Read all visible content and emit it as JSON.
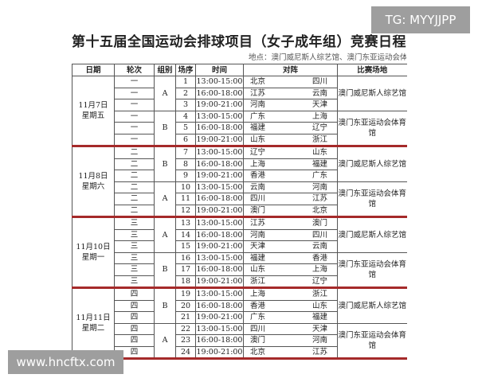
{
  "title": "第十五届全国运动会排球项目（女子成年组）竞赛日程",
  "subtitle": "地点：澳门威尼斯人综艺馆、澳门东亚运动会体育馆",
  "headers": [
    "日期",
    "轮次",
    "组别",
    "场序",
    "时间",
    "对阵",
    "比赛场地"
  ],
  "days": [
    {
      "date": "11月7日",
      "weekday": "星期五",
      "blocks": [
        {
          "group": "A",
          "venue": "澳门威尼斯人综艺馆",
          "matches": [
            {
              "round": "一",
              "no": "1",
              "time": "13:00-15:00",
              "home": "北京",
              "away": "四川"
            },
            {
              "round": "一",
              "no": "2",
              "time": "16:00-18:00",
              "home": "江苏",
              "away": "云南"
            },
            {
              "round": "一",
              "no": "3",
              "time": "19:00-21:00",
              "home": "河南",
              "away": "天津"
            }
          ]
        },
        {
          "group": "B",
          "venue": "澳门东亚运动会体育馆",
          "matches": [
            {
              "round": "一",
              "no": "4",
              "time": "13:00-15:00",
              "home": "广东",
              "away": "上海"
            },
            {
              "round": "一",
              "no": "5",
              "time": "16:00-18:00",
              "home": "福建",
              "away": "辽宁"
            },
            {
              "round": "一",
              "no": "6",
              "time": "19:00-21:00",
              "home": "山东",
              "away": "浙江"
            }
          ]
        }
      ]
    },
    {
      "date": "11月8日",
      "weekday": "星期六",
      "blocks": [
        {
          "group": "B",
          "venue": "澳门威尼斯人综艺馆",
          "matches": [
            {
              "round": "二",
              "no": "7",
              "time": "13:00-15:00",
              "home": "辽宁",
              "away": "山东"
            },
            {
              "round": "二",
              "no": "8",
              "time": "16:00-18:00",
              "home": "上海",
              "away": "福建"
            },
            {
              "round": "二",
              "no": "9",
              "time": "19:00-21:00",
              "home": "香港",
              "away": "广东"
            }
          ]
        },
        {
          "group": "A",
          "venue": "澳门东亚运动会体育馆",
          "matches": [
            {
              "round": "二",
              "no": "10",
              "time": "13:00-15:00",
              "home": "云南",
              "away": "河南"
            },
            {
              "round": "二",
              "no": "11",
              "time": "16:00-18:00",
              "home": "四川",
              "away": "江苏"
            },
            {
              "round": "二",
              "no": "12",
              "time": "19:00-21:00",
              "home": "澳门",
              "away": "北京"
            }
          ]
        }
      ]
    },
    {
      "date": "11月10日",
      "weekday": "星期一",
      "blocks": [
        {
          "group": "A",
          "venue": "澳门威尼斯人综艺馆",
          "matches": [
            {
              "round": "三",
              "no": "13",
              "time": "13:00-15:00",
              "home": "江苏",
              "away": "澳门"
            },
            {
              "round": "三",
              "no": "14",
              "time": "16:00-18:00",
              "home": "河南",
              "away": "四川"
            },
            {
              "round": "三",
              "no": "15",
              "time": "19:00-21:00",
              "home": "天津",
              "away": "云南"
            }
          ]
        },
        {
          "group": "B",
          "venue": "澳门东亚运动会体育馆",
          "matches": [
            {
              "round": "三",
              "no": "16",
              "time": "13:00-15:00",
              "home": "福建",
              "away": "香港"
            },
            {
              "round": "三",
              "no": "17",
              "time": "16:00-18:00",
              "home": "山东",
              "away": "上海"
            },
            {
              "round": "三",
              "no": "18",
              "time": "19:00-21:00",
              "home": "浙江",
              "away": "辽宁"
            }
          ]
        }
      ]
    },
    {
      "date": "11月11日",
      "weekday": "星期二",
      "blocks": [
        {
          "group": "B",
          "venue": "澳门威尼斯人综艺馆",
          "matches": [
            {
              "round": "四",
              "no": "19",
              "time": "13:00-15:00",
              "home": "上海",
              "away": "浙江"
            },
            {
              "round": "四",
              "no": "20",
              "time": "16:00-18:00",
              "home": "香港",
              "away": "山东"
            },
            {
              "round": "四",
              "no": "21",
              "time": "19:00-21:00",
              "home": "广东",
              "away": "福建"
            }
          ]
        },
        {
          "group": "A",
          "venue": "澳门东亚运动会体育馆",
          "matches": [
            {
              "round": "四",
              "no": "22",
              "time": "13:00-15:00",
              "home": "四川",
              "away": "天津"
            },
            {
              "round": "四",
              "no": "23",
              "time": "16:00-18:00",
              "home": "澳门",
              "away": "河南"
            },
            {
              "round": "四",
              "no": "24",
              "time": "19:00-21:00",
              "home": "北京",
              "away": "江苏"
            }
          ]
        }
      ]
    }
  ],
  "watermarks": {
    "top": "TG: MYYJJPP",
    "bottom": "www.hncftx.com"
  },
  "colors": {
    "day_separator": "#a52a2a",
    "watermark_bg": "#9e9e9e"
  }
}
